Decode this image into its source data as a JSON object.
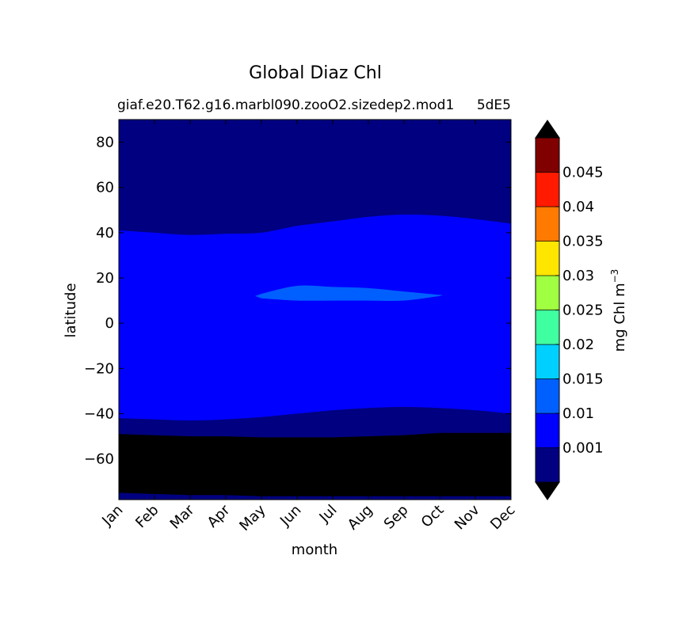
{
  "chart_data": {
    "type": "heatmap",
    "title": "Global Diaz Chl",
    "subtitle_left": "giaf.e20.T62.g16.marbl090.zooO2.sizedep2.mod1",
    "subtitle_right": "5dE5",
    "xlabel": "month",
    "ylabel": "latitude",
    "x_categories": [
      "Jan",
      "Feb",
      "Mar",
      "Apr",
      "May",
      "Jun",
      "Jul",
      "Aug",
      "Sep",
      "Oct",
      "Nov",
      "Dec"
    ],
    "ylim": [
      -78,
      90
    ],
    "yticks": [
      80,
      60,
      40,
      20,
      0,
      -20,
      -40,
      -60
    ],
    "ytick_labels": [
      "80",
      "60",
      "40",
      "20",
      "0",
      "−20",
      "−40",
      "−60"
    ],
    "colorbar": {
      "label": "mg Chl m",
      "label_exponent": "−3",
      "levels": [
        0,
        0.001,
        0.01,
        0.015,
        0.02,
        0.025,
        0.03,
        0.035,
        0.04,
        0.045,
        0.05
      ],
      "tick_labels": [
        "0.001",
        "0.01",
        "0.015",
        "0.02",
        "0.025",
        "0.03",
        "0.035",
        "0.04",
        "0.045"
      ],
      "colors": [
        "#000080",
        "#0000ff",
        "#0060ff",
        "#00d0ff",
        "#40ffa0",
        "#a0ff40",
        "#ffe600",
        "#ff7a00",
        "#ff1a00",
        "#800000"
      ],
      "under_color": "#000000",
      "over_color": "#000000",
      "extend": "both"
    },
    "regions": [
      {
        "level_index": 0,
        "description": "north of northern boundary",
        "boundary_lat": [
          41,
          40,
          39,
          39.5,
          40,
          43,
          45,
          47,
          48,
          47.5,
          46,
          44
        ]
      },
      {
        "level_index": 1,
        "description": "between boundaries",
        "south_boundary_lat": [
          -42,
          -42.5,
          -43,
          -42.5,
          -41.5,
          -40,
          -38.5,
          -37.5,
          -37,
          -37.5,
          -38.5,
          -40
        ]
      },
      {
        "level_index": 2,
        "description": "equatorial patch",
        "months": [
          "May",
          "Jun",
          "Jul",
          "Aug",
          "Sep",
          "Oct"
        ],
        "north_lat": [
          13,
          16.5,
          16,
          15.5,
          14,
          12.5
        ],
        "south_lat": [
          11,
          10,
          10,
          10,
          10,
          12
        ]
      },
      {
        "under": true,
        "description": "southern black band",
        "north_lat": [
          -49,
          -49.5,
          -50,
          -50,
          -50.5,
          -50.5,
          -50.5,
          -50,
          -49.5,
          -48.5,
          -48.5,
          -48.5
        ],
        "south_lat": [
          -75,
          -75.5,
          -76,
          -76,
          -76.5,
          -76.5,
          -76.5,
          -76.5,
          -76.5,
          -76.5,
          -76.5,
          -76.5
        ]
      }
    ]
  }
}
